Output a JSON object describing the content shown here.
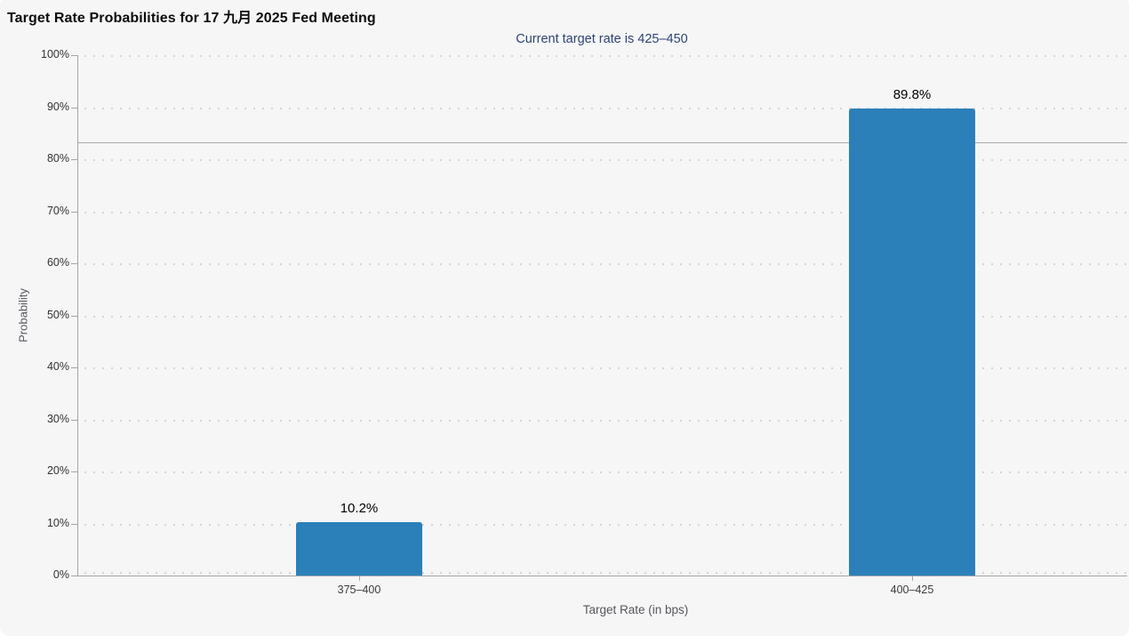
{
  "chart_data": {
    "type": "bar",
    "title": "Target Rate Probabilities for 17 九月 2025 Fed Meeting",
    "subtitle": "Current target rate is 425–450",
    "xlabel": "Target Rate (in bps)",
    "ylabel": "Probability",
    "categories": [
      "375–400",
      "400–425"
    ],
    "values": [
      10.2,
      89.8
    ],
    "value_labels": [
      "10.2%",
      "89.8%"
    ],
    "ylim": [
      0,
      100
    ],
    "ytick_step": 10,
    "ytick_labels": [
      "0%",
      "10%",
      "20%",
      "30%",
      "40%",
      "50%",
      "60%",
      "70%",
      "80%",
      "90%",
      "100%"
    ],
    "grid": "horizontal-dotted",
    "legend": null,
    "reference_line_pct": 83.3,
    "colors": {
      "bar": "#2b80b9",
      "subtitle_text": "#2e4372",
      "background": "#f6f6f7",
      "axis": "#a5a5a5",
      "grid_dot": "#d4d4d4",
      "reference_line": "#a9a9a9"
    }
  }
}
